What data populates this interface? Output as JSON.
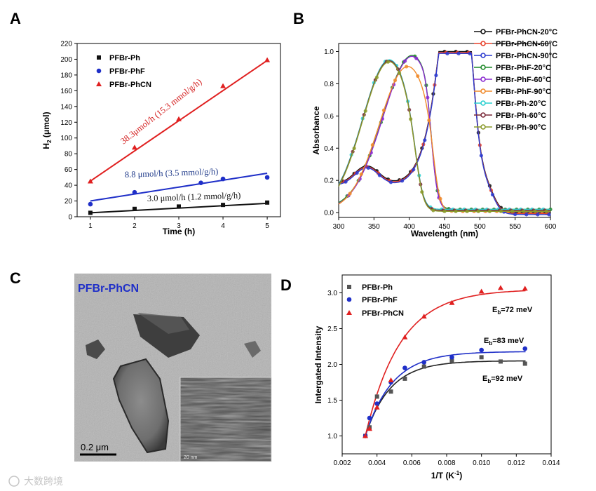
{
  "panels": {
    "a": "A",
    "b": "B",
    "c": "C",
    "d": "D"
  },
  "watermark": "大数跨境",
  "chart_data": [
    {
      "id": "A",
      "type": "scatter",
      "title": "",
      "xlabel": "Time (h)",
      "ylabel_main": "H",
      "ylabel_sub": "2",
      "ylabel_rest": " (μmol)",
      "xlim": [
        0.7,
        5.3
      ],
      "ylim": [
        0,
        220
      ],
      "xticks": [
        1,
        2,
        3,
        4,
        5
      ],
      "yticks": [
        0,
        20,
        40,
        60,
        80,
        100,
        120,
        140,
        160,
        180,
        200,
        220
      ],
      "series": [
        {
          "name": "PFBr-Ph",
          "color": "#111111",
          "marker": "square",
          "x": [
            1,
            2,
            3,
            4,
            5
          ],
          "y": [
            5,
            10,
            13,
            15,
            18
          ],
          "fit": [
            3.0,
            2.0
          ]
        },
        {
          "name": "PFBr-PhF",
          "color": "#1f2fc8",
          "marker": "circle",
          "x": [
            1,
            2,
            3.5,
            4,
            5
          ],
          "y": [
            16,
            31,
            43,
            48,
            50
          ],
          "fit": [
            8.8,
            11.2
          ]
        },
        {
          "name": "PFBr-PhCN",
          "color": "#e02020",
          "marker": "triangle",
          "x": [
            1,
            2,
            3,
            4,
            5
          ],
          "y": [
            45,
            88,
            124,
            166,
            199
          ],
          "fit": [
            38.3,
            7
          ]
        }
      ],
      "annotations": [
        {
          "text": "38.3μmol/h (15.3 mmol/g/h)",
          "color": "#d42020"
        },
        {
          "text": "8.8 μmol/h (3.5 mmol/g/h)",
          "color": "#1f3a8a"
        },
        {
          "text": "3.0 μmol/h (1.2 mmol/g/h)",
          "color": "#111111"
        }
      ]
    },
    {
      "id": "B",
      "type": "line",
      "title": "",
      "xlabel": "Wavelength (nm)",
      "ylabel": "Absorbance",
      "xlim": [
        300,
        600
      ],
      "ylim": [
        -0.03,
        1.05
      ],
      "xticks": [
        300,
        350,
        400,
        450,
        500,
        550,
        600
      ],
      "yticks": [
        0.0,
        0.2,
        0.4,
        0.6,
        0.8,
        1.0
      ],
      "series": [
        {
          "name": "PFBr-PhCN-20°C",
          "color": "#111111",
          "profile": "CN"
        },
        {
          "name": "PFBr-PhCN-60°C",
          "color": "#e8402a",
          "profile": "CN"
        },
        {
          "name": "PFBr-PhCN-90°C",
          "color": "#2a3ad0",
          "profile": "CN"
        },
        {
          "name": "PFBr-PhF-20°C",
          "color": "#1f8a2a",
          "profile": "F"
        },
        {
          "name": "PFBr-PhF-60°C",
          "color": "#8a2ad0",
          "profile": "F"
        },
        {
          "name": "PFBr-PhF-90°C",
          "color": "#f08a2a",
          "profile": "F90"
        },
        {
          "name": "PFBr-Ph-20°C",
          "color": "#2ad0d0",
          "profile": "Ph"
        },
        {
          "name": "PFBr-Ph-60°C",
          "color": "#7a2a3a",
          "profile": "Ph"
        },
        {
          "name": "PFBr-Ph-90°C",
          "color": "#8a9a2a",
          "profile": "Ph"
        }
      ]
    },
    {
      "id": "D",
      "type": "scatter",
      "title": "",
      "xlabel_main": "1/T (K",
      "xlabel_sup": "-1",
      "xlabel_end": ")",
      "ylabel": "Intergated Intensity",
      "xlim": [
        0.002,
        0.014
      ],
      "ylim": [
        0.75,
        3.25
      ],
      "xticks": [
        0.002,
        0.004,
        0.006,
        0.008,
        0.01,
        0.012,
        0.014
      ],
      "xtick_labels": [
        "0.002",
        "0.004",
        "0.006",
        "0.008",
        "0.010",
        "0.012",
        "0.014"
      ],
      "yticks": [
        1.0,
        1.5,
        2.0,
        2.5,
        3.0
      ],
      "series": [
        {
          "name": "PFBr-Ph",
          "color": "#555555",
          "marker": "square",
          "x": [
            0.00333,
            0.00357,
            0.004,
            0.0048,
            0.0056,
            0.0067,
            0.0083,
            0.01,
            0.0111,
            0.0125
          ],
          "y": [
            1.0,
            1.12,
            1.55,
            1.62,
            1.8,
            1.97,
            2.05,
            2.1,
            2.04,
            2.01
          ],
          "fit_A": 2.05,
          "fit_k": 700,
          "eb_main": "E",
          "eb_sub": "b",
          "eb_rest": "=92 meV",
          "eb_color": "#111111"
        },
        {
          "name": "PFBr-PhF",
          "color": "#1f2fc8",
          "marker": "circle",
          "x": [
            0.00333,
            0.00357,
            0.004,
            0.0048,
            0.0056,
            0.0067,
            0.0083,
            0.01,
            0.0125
          ],
          "y": [
            1.0,
            1.25,
            1.45,
            1.75,
            1.95,
            2.03,
            2.1,
            2.2,
            2.22
          ],
          "fit_A": 2.18,
          "fit_k": 640,
          "eb_main": "E",
          "eb_sub": "b",
          "eb_rest": "=83 meV",
          "eb_color": "#1f2fc8"
        },
        {
          "name": "PFBr-PhCN",
          "color": "#e02020",
          "marker": "triangle",
          "x": [
            0.00333,
            0.00357,
            0.004,
            0.0048,
            0.0056,
            0.0067,
            0.0083,
            0.01,
            0.0111,
            0.0125
          ],
          "y": [
            1.0,
            1.1,
            1.4,
            1.78,
            2.38,
            2.67,
            2.86,
            3.02,
            3.07,
            3.06
          ],
          "fit_A": 3.05,
          "fit_k": 500,
          "eb_main": "E",
          "eb_sub": "b",
          "eb_rest": "=72 meV",
          "eb_color": "#e02020"
        }
      ]
    }
  ],
  "tem": {
    "label": "PFBr-PhCN",
    "scale_text": "0.2 μm",
    "inset_scale": "20 nm"
  }
}
